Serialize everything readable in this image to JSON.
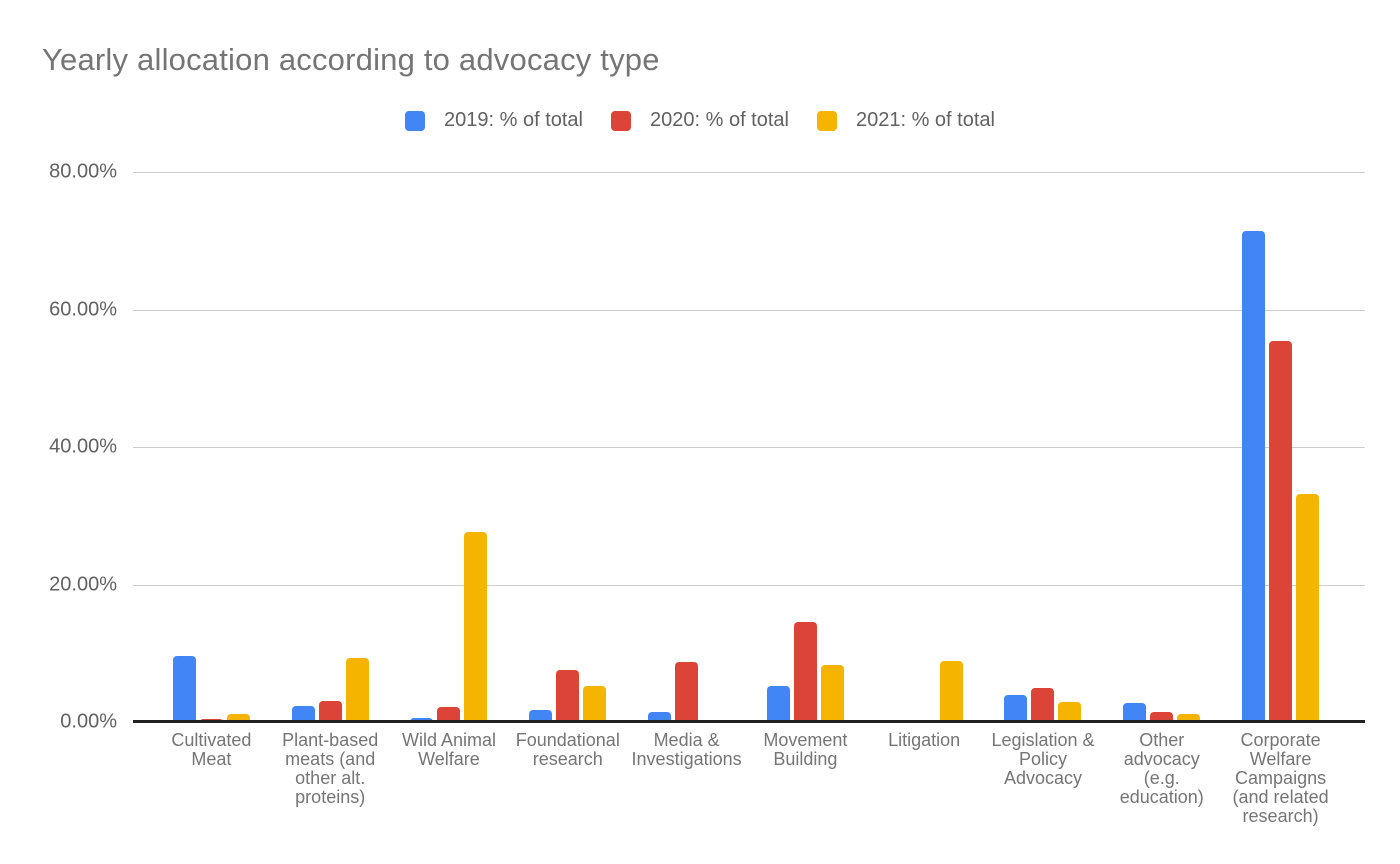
{
  "chart_data": {
    "type": "bar",
    "title": "Yearly allocation according to advocacy type",
    "categories": [
      "Cultivated Meat",
      "Plant-based meats (and other alt. proteins)",
      "Wild Animal Welfare",
      "Foundational research",
      "Media & Investigations",
      "Movement Building",
      "Litigation",
      "Legislation & Policy Advocacy",
      "Other advocacy (e.g. education)",
      "Corporate Welfare Campaigns (and related research)"
    ],
    "categories_wrapped": [
      "Cultivated\nMeat",
      "Plant-based\nmeats (and\nother alt.\nproteins)",
      "Wild Animal\nWelfare",
      "Foundational\nresearch",
      "Media &\nInvestigations",
      "Movement\nBuilding",
      "Litigation",
      "Legislation &\nPolicy\nAdvocacy",
      "Other\nadvocacy\n(e.g.\neducation)",
      "Corporate\nWelfare\nCampaigns\n(and related\nresearch)"
    ],
    "series": [
      {
        "name": "2019: % of total",
        "color": "#4285F4",
        "values": [
          9.6,
          2.3,
          0.6,
          1.8,
          1.5,
          5.2,
          0.2,
          3.9,
          2.8,
          71.4
        ]
      },
      {
        "name": "2020: % of total",
        "color": "#DB4437",
        "values": [
          0.5,
          3.0,
          2.2,
          7.6,
          8.8,
          14.5,
          0.2,
          4.9,
          1.4,
          55.4
        ]
      },
      {
        "name": "2021: % of total",
        "color": "#F4B400",
        "values": [
          1.2,
          9.3,
          27.7,
          5.3,
          0.2,
          8.3,
          8.9,
          2.9,
          1.1,
          33.2
        ]
      }
    ],
    "y_axis": {
      "ticks": [
        "80.00%",
        "60.00%",
        "40.00%",
        "20.00%",
        "0.00%"
      ],
      "min": 0,
      "max": 80,
      "tick_step": 20,
      "format": "percent"
    },
    "xlabel": "",
    "ylabel": "",
    "legend_position": "top",
    "grid": true,
    "background": "#ffffff"
  }
}
